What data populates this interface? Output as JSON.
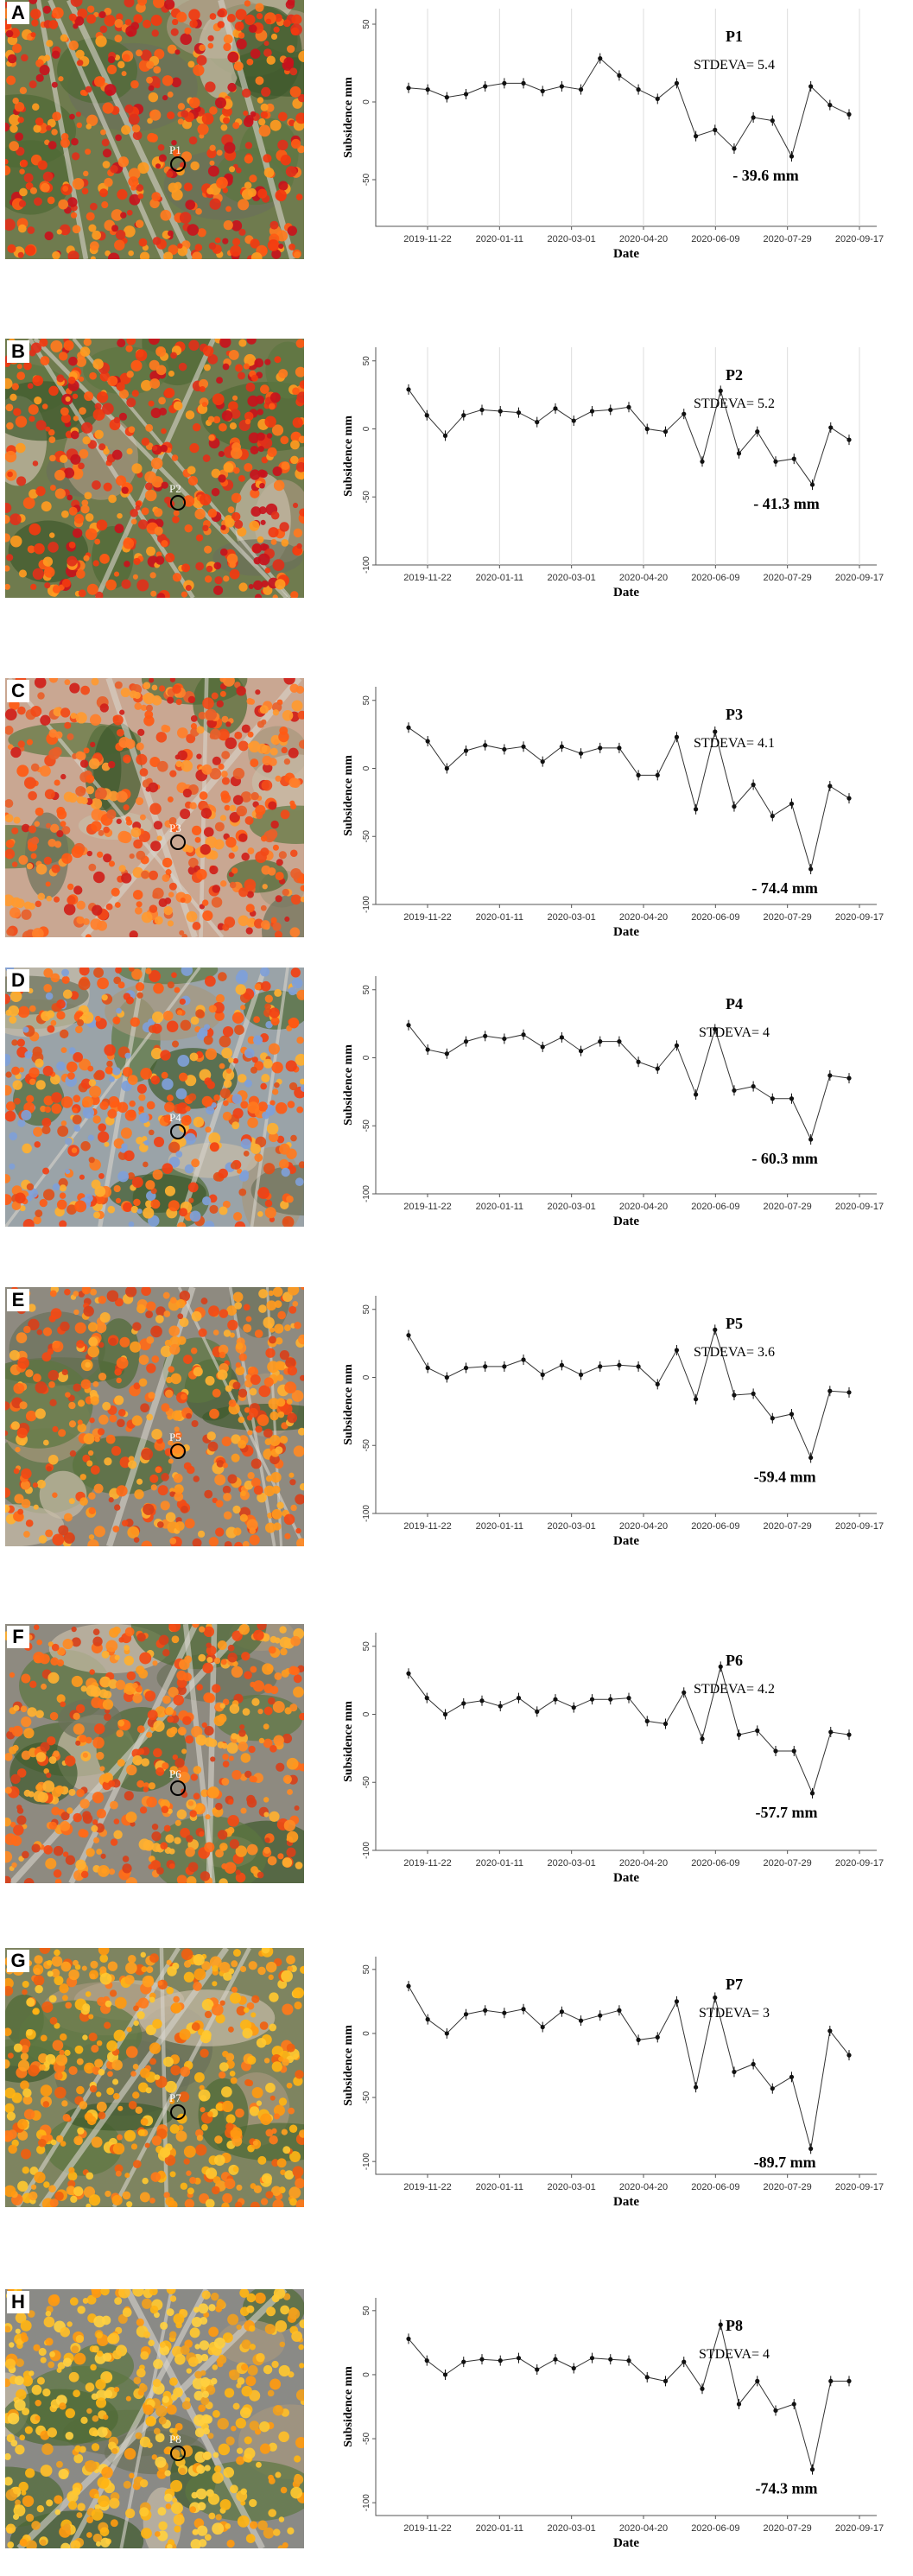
{
  "figure": {
    "panels": [
      {
        "letter": "A",
        "map_label": "P1",
        "map_palette": "red",
        "chart_data": {
          "type": "line",
          "title": "P1",
          "stdev_label": "STDEVA= 5.4",
          "min_label": "- 39.6 mm",
          "xlabel": "Date",
          "ylabel": "Subsidence mm",
          "x_ticks": [
            "2019-11-22",
            "2020-01-11",
            "2020-03-01",
            "2020-04-20",
            "2020-06-09",
            "2020-07-29",
            "2020-09-17"
          ],
          "y_ticks": [
            "50",
            "0",
            "-50"
          ],
          "ylim": [
            -80,
            60
          ],
          "grid": true,
          "values": [
            9,
            8,
            3,
            5,
            10,
            12,
            12,
            7,
            10,
            8,
            28,
            17,
            8,
            2,
            12,
            -22,
            -18,
            -30,
            -10,
            -12,
            -35,
            10,
            -2,
            -8
          ]
        }
      },
      {
        "letter": "B",
        "map_label": "P2",
        "map_palette": "red",
        "chart_data": {
          "type": "line",
          "title": "P2",
          "stdev_label": "STDEVA= 5.2",
          "min_label": "- 41.3 mm",
          "xlabel": "Date",
          "ylabel": "Subsidence mm",
          "x_ticks": [
            "2019-11-22",
            "2020-01-11",
            "2020-03-01",
            "2020-04-20",
            "2020-06-09",
            "2020-07-29",
            "2020-09-17"
          ],
          "y_ticks": [
            "50",
            "0",
            "-50",
            "-100"
          ],
          "ylim": [
            -100,
            60
          ],
          "grid": true,
          "values": [
            29,
            10,
            -5,
            10,
            14,
            13,
            12,
            5,
            15,
            6,
            13,
            14,
            16,
            0,
            -2,
            11,
            -24,
            28,
            -18,
            -2,
            -24,
            -22,
            -41,
            1,
            -8
          ]
        }
      },
      {
        "letter": "C",
        "map_label": "P3",
        "map_palette": "pink",
        "chart_data": {
          "type": "line",
          "title": "P3",
          "stdev_label": "STDEVA= 4.1",
          "min_label": "- 74.4 mm",
          "xlabel": "Date",
          "ylabel": "Subsidence mm",
          "x_ticks": [
            "2019-11-22",
            "2020-01-11",
            "2020-03-01",
            "2020-04-20",
            "2020-06-09",
            "2020-07-29",
            "2020-09-17"
          ],
          "y_ticks": [
            "50",
            "0",
            "-50",
            "-100"
          ],
          "ylim": [
            -100,
            60
          ],
          "grid": false,
          "values": [
            30,
            20,
            0,
            13,
            17,
            14,
            16,
            5,
            16,
            11,
            15,
            15,
            -5,
            -5,
            23,
            -30,
            27,
            -28,
            -12,
            -35,
            -26,
            -74,
            -13,
            -22
          ]
        }
      },
      {
        "letter": "D",
        "map_label": "P4",
        "map_palette": "blue",
        "chart_data": {
          "type": "line",
          "title": "P4",
          "stdev_label": "STDEVA= 4",
          "min_label": "- 60.3 mm",
          "xlabel": "Date",
          "ylabel": "Subsidence mm",
          "x_ticks": [
            "2019-11-22",
            "2020-01-11",
            "2020-03-01",
            "2020-04-20",
            "2020-06-09",
            "2020-07-29",
            "2020-09-17"
          ],
          "y_ticks": [
            "50",
            "0",
            "-50",
            "-100"
          ],
          "ylim": [
            -100,
            60
          ],
          "grid": false,
          "values": [
            24,
            6,
            3,
            12,
            16,
            14,
            17,
            8,
            15,
            5,
            12,
            12,
            -3,
            -8,
            9,
            -27,
            21,
            -24,
            -21,
            -30,
            -30,
            -60,
            -13,
            -15
          ]
        }
      },
      {
        "letter": "E",
        "map_label": "P5",
        "map_palette": "city",
        "chart_data": {
          "type": "line",
          "title": "P5",
          "stdev_label": "STDEVA= 3.6",
          "min_label": "-59.4 mm",
          "xlabel": "Date",
          "ylabel": "Subsidence mm",
          "x_ticks": [
            "2019-11-22",
            "2020-01-11",
            "2020-03-01",
            "2020-04-20",
            "2020-06-09",
            "2020-07-29",
            "2020-09-17"
          ],
          "y_ticks": [
            "50",
            "0",
            "-50",
            "-100"
          ],
          "ylim": [
            -100,
            60
          ],
          "grid": false,
          "values": [
            31,
            7,
            0,
            7,
            8,
            8,
            13,
            2,
            9,
            2,
            8,
            9,
            8,
            -5,
            20,
            -16,
            35,
            -13,
            -12,
            -30,
            -27,
            -59,
            -10,
            -11
          ]
        }
      },
      {
        "letter": "F",
        "map_label": "P6",
        "map_palette": "city",
        "chart_data": {
          "type": "line",
          "title": "P6",
          "stdev_label": "STDEVA= 4.2",
          "min_label": "-57.7 mm",
          "xlabel": "Date",
          "ylabel": "Subsidence mm",
          "x_ticks": [
            "2019-11-22",
            "2020-01-11",
            "2020-03-01",
            "2020-04-20",
            "2020-06-09",
            "2020-07-29",
            "2020-09-17"
          ],
          "y_ticks": [
            "50",
            "0",
            "-50",
            "-100"
          ],
          "ylim": [
            -100,
            60
          ],
          "grid": false,
          "values": [
            30,
            12,
            0,
            8,
            10,
            6,
            12,
            2,
            11,
            5,
            11,
            11,
            12,
            -5,
            -7,
            16,
            -18,
            35,
            -15,
            -12,
            -27,
            -27,
            -58,
            -13,
            -15
          ]
        }
      },
      {
        "letter": "G",
        "map_label": "P7",
        "map_palette": "yellow",
        "chart_data": {
          "type": "line",
          "title": "P7",
          "stdev_label": "STDEVA= 3",
          "min_label": "-89.7 mm",
          "xlabel": "Date",
          "ylabel": "Subsidence mm",
          "x_ticks": [
            "2019-11-22",
            "2020-01-11",
            "2020-03-01",
            "2020-04-20",
            "2020-06-09",
            "2020-07-29",
            "2020-09-17"
          ],
          "y_ticks": [
            "50",
            "0",
            "-50",
            "-100"
          ],
          "ylim": [
            -110,
            60
          ],
          "grid": false,
          "values": [
            37,
            11,
            0,
            15,
            18,
            16,
            19,
            5,
            17,
            10,
            14,
            18,
            -5,
            -3,
            25,
            -42,
            28,
            -30,
            -24,
            -43,
            -34,
            -90,
            2,
            -17
          ]
        }
      },
      {
        "letter": "H",
        "map_label": "P8",
        "map_palette": "yellow2",
        "chart_data": {
          "type": "line",
          "title": "P8",
          "stdev_label": "STDEVA= 4",
          "min_label": "-74.3 mm",
          "xlabel": "Date",
          "ylabel": "Subsidence mm",
          "x_ticks": [
            "2019-11-22",
            "2020-01-11",
            "2020-03-01",
            "2020-04-20",
            "2020-06-09",
            "2020-07-29",
            "2020-09-17"
          ],
          "y_ticks": [
            "50",
            "0",
            "-50",
            "-100"
          ],
          "ylim": [
            -110,
            60
          ],
          "grid": false,
          "values": [
            28,
            11,
            0,
            10,
            12,
            11,
            13,
            4,
            12,
            5,
            13,
            12,
            11,
            -2,
            -5,
            10,
            -11,
            39,
            -23,
            -5,
            -28,
            -23,
            -74,
            -5,
            -5
          ]
        }
      }
    ]
  }
}
